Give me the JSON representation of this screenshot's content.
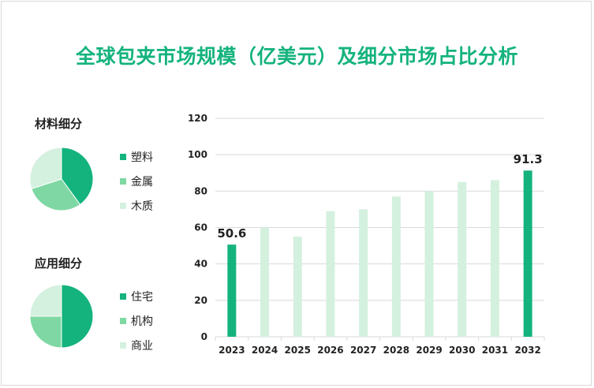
{
  "title": "全球包夹市场规模（亿美元）及细分市场占比分析",
  "colors": {
    "dark": "#14b37d",
    "medium": "#7fd8a3",
    "light": "#d4f0de",
    "grid": "#d9d9d9"
  },
  "material": {
    "title": "材料细分",
    "legend": [
      "塑料",
      "金属",
      "木质"
    ],
    "values": [
      40,
      30,
      30
    ]
  },
  "application": {
    "title": "应用细分",
    "legend": [
      "住宅",
      "机构",
      "商业"
    ],
    "values": [
      50,
      25,
      25
    ]
  },
  "chart_data": {
    "type": "bar",
    "categories": [
      "2023",
      "2024",
      "2025",
      "2026",
      "2027",
      "2028",
      "2029",
      "2030",
      "2031",
      "2032"
    ],
    "values": [
      50.6,
      60,
      55,
      69,
      70,
      77,
      80,
      85,
      86,
      91.3
    ],
    "data_labels": {
      "2023": "50.6",
      "2032": "91.3"
    },
    "highlight": [
      "2023",
      "2032"
    ],
    "ylim": [
      0,
      120
    ],
    "yticks": [
      "0",
      "20",
      "40",
      "60",
      "80",
      "100",
      "120"
    ],
    "grid": true
  }
}
